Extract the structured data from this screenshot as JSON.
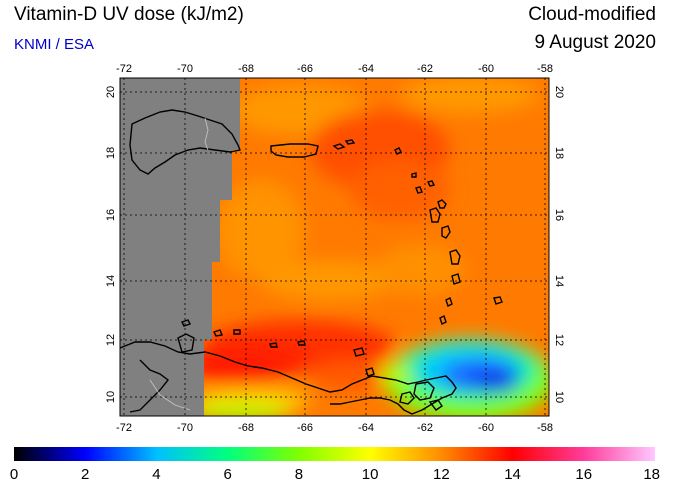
{
  "header": {
    "title": "Vitamin-D UV dose (kJ/m2)",
    "credit": "KNMI / ESA",
    "product": "Cloud-modified",
    "date": "9 August 2020"
  },
  "map": {
    "lon_ticks": [
      "-72",
      "-70",
      "-68",
      "-66",
      "-64",
      "-62",
      "-60",
      "-58"
    ],
    "lat_ticks": [
      "10",
      "12",
      "14",
      "16",
      "18",
      "20"
    ],
    "no_data_color": "#808080"
  },
  "colorbar": {
    "labels": [
      "0",
      "2",
      "4",
      "6",
      "8",
      "10",
      "12",
      "14",
      "16",
      "18"
    ],
    "colors": [
      "#000000",
      "#0000ff",
      "#00bfff",
      "#00ff7f",
      "#7fff00",
      "#ffff00",
      "#ff8c00",
      "#ff0000",
      "#ff3c9b",
      "#ffc8ff"
    ]
  }
}
